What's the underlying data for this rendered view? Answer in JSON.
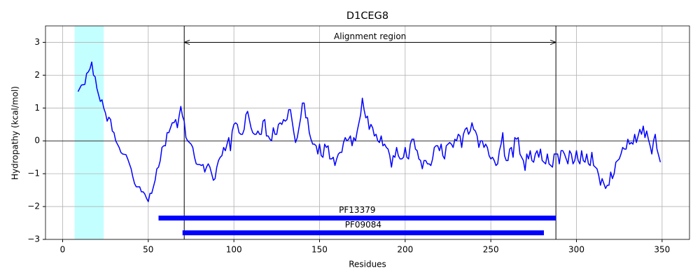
{
  "chart_data": {
    "type": "line",
    "title": "D1CEG8",
    "xlabel": "Residues",
    "ylabel": "Hydropathy (kcal/mol)",
    "x": [
      9,
      10,
      11,
      13,
      14,
      15,
      16,
      17,
      18,
      19,
      20,
      21,
      22,
      23,
      24,
      25,
      26,
      27,
      28,
      29,
      30,
      31,
      32,
      33,
      34,
      35,
      37,
      38,
      39,
      40,
      41,
      42,
      43,
      45,
      46,
      47,
      48,
      49,
      50,
      51,
      52,
      53,
      54,
      55,
      56,
      57,
      58,
      59,
      60,
      61,
      62,
      63,
      64,
      65,
      66,
      67,
      68,
      69,
      70,
      71,
      72,
      73,
      74,
      75,
      76,
      77,
      78,
      79,
      80,
      81,
      82,
      83,
      84,
      85,
      86,
      87,
      88,
      89,
      90,
      91,
      92,
      93,
      94,
      95,
      96,
      97,
      98,
      99,
      100,
      101,
      102,
      103,
      104,
      105,
      106,
      107,
      108,
      109,
      110,
      111,
      112,
      113,
      114,
      115,
      116,
      117,
      118,
      119,
      120,
      121,
      122,
      123,
      124,
      125,
      126,
      127,
      128,
      129,
      130,
      131,
      132,
      133,
      134,
      135,
      136,
      137,
      138,
      139,
      140,
      141,
      142,
      143,
      144,
      145,
      146,
      147,
      148,
      149,
      150,
      151,
      152,
      153,
      154,
      155,
      156,
      157,
      158,
      159,
      160,
      161,
      162,
      163,
      164,
      165,
      166,
      167,
      168,
      169,
      170,
      171,
      172,
      173,
      174,
      175,
      176,
      177,
      178,
      179,
      180,
      181,
      182,
      183,
      184,
      185,
      186,
      187,
      188,
      189,
      190,
      191,
      192,
      193,
      194,
      195,
      196,
      197,
      198,
      199,
      200,
      201,
      202,
      203,
      204,
      205,
      206,
      207,
      208,
      209,
      210,
      211,
      212,
      213,
      214,
      215,
      216,
      217,
      218,
      219,
      220,
      221,
      222,
      223,
      224,
      225,
      226,
      227,
      228,
      229,
      230,
      231,
      232,
      233,
      234,
      235,
      236,
      237,
      238,
      239,
      240,
      241,
      242,
      243,
      244,
      245,
      246,
      247,
      248,
      249,
      250,
      251,
      252,
      253,
      254,
      255,
      256,
      257,
      258,
      259,
      260,
      261,
      262,
      263,
      264,
      265,
      266,
      267,
      268,
      269,
      270,
      271,
      272,
      273,
      274,
      275,
      276,
      277,
      278,
      279,
      280,
      281,
      282,
      283,
      284,
      285,
      286,
      287,
      288,
      289,
      290,
      291,
      292,
      293,
      294,
      295,
      296,
      297,
      298,
      299,
      300,
      301,
      302,
      303,
      304,
      305,
      306,
      307,
      308,
      309,
      310,
      311,
      312,
      313,
      314,
      315,
      316,
      317,
      318,
      319,
      320,
      321,
      322,
      323,
      324,
      325,
      326,
      327,
      328,
      329,
      330,
      331,
      332,
      333,
      334,
      335,
      336,
      337,
      338,
      339,
      340,
      341,
      342,
      343,
      344,
      345,
      346,
      347,
      348,
      349
    ],
    "series": [
      {
        "color": "#0000ff",
        "values": [
          1.5,
          1.6,
          1.7,
          1.72,
          2.05,
          2.1,
          2.2,
          2.4,
          2.0,
          1.95,
          1.6,
          1.4,
          1.2,
          1.25,
          1.0,
          0.85,
          0.6,
          0.72,
          0.65,
          0.3,
          0.25,
          0.0,
          -0.1,
          -0.2,
          -0.35,
          -0.4,
          -0.42,
          -0.55,
          -0.7,
          -0.85,
          -1.1,
          -1.3,
          -1.4,
          -1.4,
          -1.55,
          -1.55,
          -1.62,
          -1.75,
          -1.85,
          -1.6,
          -1.6,
          -1.4,
          -1.2,
          -0.85,
          -0.8,
          -0.6,
          -0.2,
          -0.15,
          -0.15,
          0.25,
          0.25,
          0.4,
          0.55,
          0.55,
          0.65,
          0.4,
          0.75,
          1.05,
          0.75,
          0.6,
          0.1,
          0.0,
          -0.05,
          -0.1,
          -0.2,
          -0.5,
          -0.7,
          -0.72,
          -0.72,
          -0.75,
          -0.72,
          -0.95,
          -0.8,
          -0.7,
          -0.8,
          -1.0,
          -1.2,
          -1.15,
          -0.8,
          -0.6,
          -0.5,
          -0.45,
          -0.2,
          -0.3,
          -0.1,
          0.1,
          -0.3,
          0.3,
          0.5,
          0.55,
          0.5,
          0.25,
          0.2,
          0.2,
          0.35,
          0.8,
          0.9,
          0.65,
          0.4,
          0.25,
          0.2,
          0.2,
          0.3,
          0.2,
          0.2,
          0.6,
          0.65,
          0.15,
          0.15,
          0.05,
          0.0,
          0.4,
          0.2,
          0.2,
          0.5,
          0.55,
          0.5,
          0.65,
          0.6,
          0.65,
          0.95,
          0.95,
          0.6,
          0.25,
          -0.05,
          0.1,
          0.4,
          0.7,
          1.15,
          1.15,
          0.7,
          0.7,
          0.25,
          0.05,
          -0.1,
          -0.1,
          -0.15,
          -0.4,
          -0.1,
          -0.45,
          -0.5,
          -0.1,
          -0.2,
          -0.15,
          -0.55,
          -0.55,
          -0.5,
          -0.75,
          -0.55,
          -0.4,
          -0.35,
          -0.35,
          -0.05,
          0.1,
          0.0,
          0.05,
          0.15,
          -0.15,
          0.1,
          0.0,
          0.3,
          0.55,
          0.8,
          1.3,
          0.95,
          0.7,
          0.75,
          0.35,
          0.5,
          0.4,
          0.15,
          0.2,
          0.0,
          -0.05,
          0.15,
          -0.15,
          -0.1,
          -0.2,
          -0.25,
          -0.45,
          -0.8,
          -0.45,
          -0.5,
          -0.2,
          -0.45,
          -0.55,
          -0.55,
          -0.5,
          -0.2,
          -0.5,
          -0.55,
          -0.1,
          0.05,
          0.05,
          -0.25,
          -0.3,
          -0.55,
          -0.6,
          -0.85,
          -0.6,
          -0.6,
          -0.7,
          -0.7,
          -0.75,
          -0.55,
          -0.2,
          -0.15,
          -0.15,
          -0.3,
          -0.1,
          -0.45,
          -0.55,
          -0.15,
          -0.1,
          -0.05,
          -0.1,
          -0.2,
          0.05,
          0.0,
          0.2,
          0.15,
          -0.2,
          0.2,
          0.35,
          0.4,
          0.2,
          0.3,
          0.55,
          0.35,
          0.3,
          0.15,
          -0.2,
          0.0,
          0.0,
          -0.2,
          -0.1,
          -0.2,
          -0.45,
          -0.55,
          -0.5,
          -0.6,
          -0.75,
          -0.7,
          -0.3,
          -0.1,
          0.25,
          -0.45,
          -0.6,
          -0.6,
          -0.25,
          -0.2,
          -0.5,
          0.1,
          0.05,
          0.1,
          -0.4,
          -0.5,
          -0.6,
          -0.9,
          -0.4,
          -0.55,
          -0.3,
          -0.6,
          -0.65,
          -0.4,
          -0.3,
          -0.5,
          -0.25,
          -0.6,
          -0.65,
          -0.7,
          -0.4,
          -0.7,
          -0.75,
          -0.8,
          -0.4,
          -0.4,
          -0.4,
          -0.7,
          -0.3,
          -0.3,
          -0.4,
          -0.55,
          -0.7,
          -0.3,
          -0.4,
          -0.7,
          -0.6,
          -0.3,
          -0.6,
          -0.7,
          -0.3,
          -0.6,
          -0.65,
          -0.4,
          -0.7,
          -0.75,
          -0.35,
          -0.75,
          -0.8,
          -0.85,
          -1.05,
          -1.35,
          -1.15,
          -1.3,
          -1.45,
          -1.35,
          -1.35,
          -0.95,
          -1.15,
          -1.0,
          -0.65,
          -0.6,
          -0.55,
          -0.4,
          -0.2,
          -0.25,
          -0.25,
          0.05,
          -0.1,
          -0.05,
          -0.1,
          0.2,
          -0.05,
          0.15,
          0.35,
          0.2,
          0.45,
          0.1,
          0.3,
          0.05,
          -0.15,
          -0.4,
          0.0,
          0.2,
          -0.25,
          -0.45,
          -0.65
        ]
      }
    ],
    "xlim": [
      -10,
      366
    ],
    "ylim": [
      -3,
      3.5
    ],
    "xticks": [
      0,
      50,
      100,
      150,
      200,
      250,
      300,
      350
    ],
    "yticks": [
      {
        "value": -3,
        "label": "−3"
      },
      {
        "value": -2,
        "label": "−2"
      },
      {
        "value": -1,
        "label": "−1"
      },
      0,
      1,
      2,
      3
    ],
    "grid": true,
    "hline": 0,
    "span": {
      "start": 7,
      "end": 24,
      "color": "#c4ffff"
    },
    "vlines": [
      71,
      288
    ],
    "arrow": {
      "label": "Alignment region",
      "start": 71,
      "end": 288,
      "y": 3
    },
    "domains": [
      {
        "name": "PF13379",
        "start": 56,
        "end": 288,
        "y": -2.35,
        "color": "#0000ff"
      },
      {
        "name": "PF09084",
        "start": 70,
        "end": 281,
        "y": -2.8,
        "color": "#0000ff"
      }
    ]
  }
}
